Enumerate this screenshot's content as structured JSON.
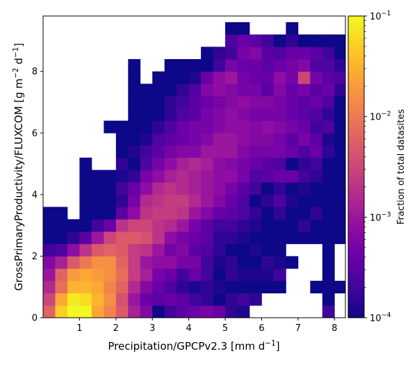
{
  "chart_data": {
    "type": "heatmap",
    "xlabel": "Precipitation/GPCPv2.3 [mm d",
    "xlabel_sup": "−1",
    "xlabel_end": "]",
    "ylabel": "GrossPrimaryProductivity/FLUXCOM [g m",
    "ylabel_sup1": "−2",
    "ylabel_mid": " d",
    "ylabel_sup2": "−1",
    "ylabel_end": "]",
    "xlim": [
      0,
      8.3
    ],
    "ylim": [
      0,
      9.8
    ],
    "bins": {
      "x_edges_start": 0,
      "x_step": 0.3333,
      "nx": 25,
      "y_edges_start": 0,
      "y_step": 0.4,
      "ny": 24
    },
    "xticks": [
      {
        "v": 1,
        "label": "1"
      },
      {
        "v": 2,
        "label": "2"
      },
      {
        "v": 3,
        "label": "3"
      },
      {
        "v": 4,
        "label": "4"
      },
      {
        "v": 5,
        "label": "5"
      },
      {
        "v": 6,
        "label": "6"
      },
      {
        "v": 7,
        "label": "7"
      },
      {
        "v": 8,
        "label": "8"
      }
    ],
    "yticks": [
      {
        "v": 0,
        "label": "0"
      },
      {
        "v": 2,
        "label": "2"
      },
      {
        "v": 4,
        "label": "4"
      },
      {
        "v": 6,
        "label": "6"
      },
      {
        "v": 8,
        "label": "8"
      }
    ],
    "colorbar": {
      "label": "Fraction of total datasites",
      "scale": "log",
      "min": 0.0001,
      "max": 0.1,
      "colormap": "plasma",
      "ticks": [
        {
          "v": 0.1,
          "base": "10",
          "exp": "−1"
        },
        {
          "v": 0.01,
          "base": "10",
          "exp": "−2"
        },
        {
          "v": 0.001,
          "base": "10",
          "exp": "−3"
        },
        {
          "v": 0.0001,
          "base": "10",
          "exp": "−4"
        }
      ]
    },
    "grid": false,
    "rows_note": "log10 fraction per bin; row 0 = lowest y bin; null = empty bin",
    "rows": [
      [
        -2.2,
        -1.3,
        -1.0,
        -1.0,
        -1.6,
        -1.9,
        -2.3,
        -2.9,
        -3.2,
        -4.0,
        -3.7,
        -3.5,
        -3.4,
        -3.3,
        -3.4,
        -3.8,
        -3.9,
        null,
        null,
        null,
        null,
        null,
        null,
        -3.7,
        null
      ],
      [
        -2.5,
        -1.6,
        -1.1,
        -1.2,
        -1.5,
        -1.8,
        -2.4,
        -3.0,
        -3.4,
        -3.5,
        -3.4,
        -3.5,
        -3.7,
        -3.8,
        -4.0,
        -3.8,
        -3.7,
        -3.8,
        null,
        null,
        null,
        null,
        null,
        -4.0,
        null
      ],
      [
        -2.8,
        -2.1,
        -1.5,
        -1.5,
        -1.6,
        -1.9,
        -2.2,
        -2.8,
        -3.2,
        -3.4,
        -3.6,
        -3.8,
        -3.9,
        -3.8,
        -3.9,
        -4.0,
        -4.0,
        -4.0,
        -4.0,
        -4.0,
        null,
        null,
        -4.0,
        -4.0,
        -4.0
      ],
      [
        -3.0,
        -2.2,
        -1.7,
        -1.6,
        -1.7,
        -1.8,
        -2.1,
        -2.6,
        -2.9,
        -3.3,
        -3.4,
        -3.7,
        -3.4,
        -3.7,
        -4.0,
        -3.8,
        -3.9,
        -3.9,
        -3.9,
        -3.7,
        null,
        null,
        null,
        -4.0,
        null
      ],
      [
        -3.2,
        -2.9,
        -2.3,
        -2.0,
        -1.8,
        -1.8,
        -2.2,
        -2.6,
        -3.0,
        -3.1,
        -3.1,
        -3.3,
        -3.3,
        -3.7,
        -3.9,
        -3.8,
        -4.0,
        -4.0,
        -3.8,
        -3.9,
        -4.0,
        null,
        null,
        -4.0,
        null
      ],
      [
        -3.7,
        -3.6,
        -3.1,
        -2.7,
        -2.3,
        -2.2,
        -2.3,
        -2.6,
        -2.7,
        -3.0,
        -3.3,
        -3.2,
        -3.5,
        -3.6,
        -3.8,
        -4.0,
        -4.0,
        -3.9,
        -4.0,
        -4.0,
        null,
        null,
        null,
        -4.0,
        null
      ],
      [
        -4.0,
        -4.0,
        -3.8,
        -3.5,
        -3.0,
        -2.5,
        -2.3,
        -2.3,
        -2.4,
        -2.7,
        -3.1,
        -3.3,
        -3.4,
        -3.5,
        -3.8,
        -3.8,
        -3.9,
        -4.0,
        -4.0,
        -4.0,
        -4.0,
        -4.0,
        -4.0,
        -4.0,
        -4.0
      ],
      [
        -4.0,
        -4.0,
        -4.0,
        -4.0,
        -3.7,
        -3.4,
        -2.7,
        -2.5,
        -2.5,
        -2.7,
        -2.8,
        -3.0,
        -3.3,
        -3.5,
        -3.7,
        -3.7,
        -3.8,
        -3.9,
        -4.0,
        -4.0,
        -4.0,
        -3.8,
        -4.0,
        -4.0,
        -4.0
      ],
      [
        -4.0,
        -4.0,
        null,
        -4.0,
        -4.0,
        -4.0,
        -3.5,
        -3.1,
        -2.7,
        -2.6,
        -2.6,
        -2.7,
        -3.0,
        -3.2,
        -3.4,
        -3.5,
        -3.6,
        -3.8,
        -4.0,
        -3.8,
        -4.0,
        -4.0,
        -3.8,
        -4.0,
        -4.0
      ],
      [
        null,
        null,
        null,
        -4.0,
        -4.0,
        -4.0,
        -3.8,
        -3.3,
        -2.8,
        -2.7,
        -2.6,
        -2.6,
        -2.8,
        -3.0,
        -3.2,
        -3.4,
        -3.6,
        -4.0,
        -3.8,
        -3.6,
        -3.9,
        -4.0,
        -4.0,
        -4.0,
        -4.0
      ],
      [
        null,
        null,
        null,
        -4.0,
        -4.0,
        -4.0,
        -3.7,
        -3.4,
        -3.1,
        -2.8,
        -2.7,
        -2.8,
        -2.9,
        -3.0,
        -3.1,
        -3.3,
        -3.5,
        -3.7,
        -4.0,
        -3.8,
        -4.0,
        -3.9,
        -4.0,
        -4.0,
        -4.0
      ],
      [
        null,
        null,
        null,
        -4.0,
        -4.0,
        -4.0,
        -3.9,
        -3.8,
        -3.3,
        -3.1,
        -2.9,
        -2.8,
        -2.9,
        -3.0,
        -3.1,
        -3.1,
        -3.3,
        -3.6,
        -3.5,
        -3.4,
        -3.4,
        -3.7,
        -3.8,
        -4.0,
        -4.0
      ],
      [
        null,
        null,
        null,
        -4.0,
        null,
        null,
        -3.8,
        -4.0,
        -3.6,
        -3.3,
        -3.1,
        -2.9,
        -2.8,
        -2.9,
        -3.1,
        -3.2,
        -3.3,
        -3.4,
        -3.5,
        -3.6,
        -4.0,
        -3.8,
        -3.7,
        -4.0,
        -4.0
      ],
      [
        null,
        null,
        null,
        null,
        null,
        null,
        -4.0,
        -3.9,
        -3.7,
        -3.5,
        -3.3,
        -3.2,
        -3.2,
        -3.0,
        -3.0,
        -3.0,
        -3.2,
        -3.3,
        -3.3,
        -3.3,
        -3.4,
        -3.6,
        -3.4,
        -3.8,
        -4.0
      ],
      [
        null,
        null,
        null,
        null,
        null,
        null,
        -4.0,
        -4.0,
        -3.9,
        -3.6,
        -3.5,
        -3.4,
        -3.3,
        -3.2,
        -3.0,
        -3.0,
        -3.1,
        -3.2,
        -3.2,
        -3.3,
        -3.5,
        -3.3,
        -3.5,
        -3.9,
        -4.0
      ],
      [
        null,
        null,
        null,
        null,
        null,
        -4.0,
        -4.0,
        -4.0,
        -4.0,
        -3.8,
        -3.6,
        -3.4,
        -3.3,
        -3.3,
        -3.2,
        -3.1,
        -3.1,
        -3.2,
        -3.1,
        -3.2,
        -3.3,
        -3.4,
        -3.7,
        -3.6,
        -4.0
      ],
      [
        null,
        null,
        null,
        null,
        null,
        null,
        null,
        -4.0,
        -4.0,
        -4.0,
        -3.8,
        -3.6,
        -3.5,
        -3.3,
        -3.2,
        -3.1,
        -3.2,
        -3.3,
        -3.3,
        -3.3,
        -3.4,
        -3.5,
        -3.6,
        -3.8,
        -4.0
      ],
      [
        null,
        null,
        null,
        null,
        null,
        null,
        null,
        -4.0,
        -4.0,
        -4.0,
        -3.8,
        -3.7,
        -3.5,
        -3.4,
        -3.3,
        -3.2,
        -3.1,
        -3.2,
        -3.2,
        -3.3,
        -3.4,
        -3.5,
        -3.4,
        -3.6,
        -4.0
      ],
      [
        null,
        null,
        null,
        null,
        null,
        null,
        null,
        -4.0,
        -4.0,
        -4.0,
        -4.0,
        -3.8,
        -3.6,
        -3.2,
        -3.1,
        -3.2,
        -3.3,
        -3.3,
        -3.5,
        -3.2,
        -3.4,
        -3.3,
        -3.5,
        -3.4,
        -3.8
      ],
      [
        null,
        null,
        null,
        null,
        null,
        null,
        null,
        -4.0,
        null,
        -4.0,
        -4.0,
        -4.0,
        -3.9,
        -3.4,
        -3.1,
        -3.0,
        -3.3,
        -3.4,
        -3.4,
        -3.1,
        -3.3,
        -2.5,
        -3.3,
        -3.5,
        -3.6
      ],
      [
        null,
        null,
        null,
        null,
        null,
        null,
        null,
        -4.0,
        null,
        null,
        -4.0,
        -4.0,
        -4.0,
        -4.0,
        -3.7,
        -3.3,
        -3.4,
        -3.4,
        -3.5,
        -3.4,
        -3.3,
        -3.2,
        -3.6,
        -3.6,
        -3.8
      ],
      [
        null,
        null,
        null,
        null,
        null,
        null,
        null,
        null,
        null,
        null,
        null,
        null,
        null,
        -4.0,
        -3.8,
        -3.7,
        -3.3,
        -3.2,
        -3.5,
        -3.6,
        -3.4,
        -3.4,
        -3.5,
        -3.7,
        -4.0
      ],
      [
        null,
        null,
        null,
        null,
        null,
        null,
        null,
        null,
        null,
        null,
        null,
        null,
        null,
        null,
        null,
        -3.6,
        -3.4,
        -3.5,
        -3.7,
        -4.0,
        -3.8,
        -4.0,
        -4.0,
        -4.0,
        -4.0
      ],
      [
        null,
        null,
        null,
        null,
        null,
        null,
        null,
        null,
        null,
        null,
        null,
        null,
        null,
        null,
        null,
        -4.0,
        -4.0,
        null,
        null,
        null,
        -4.0,
        null,
        null,
        null,
        null
      ]
    ]
  }
}
